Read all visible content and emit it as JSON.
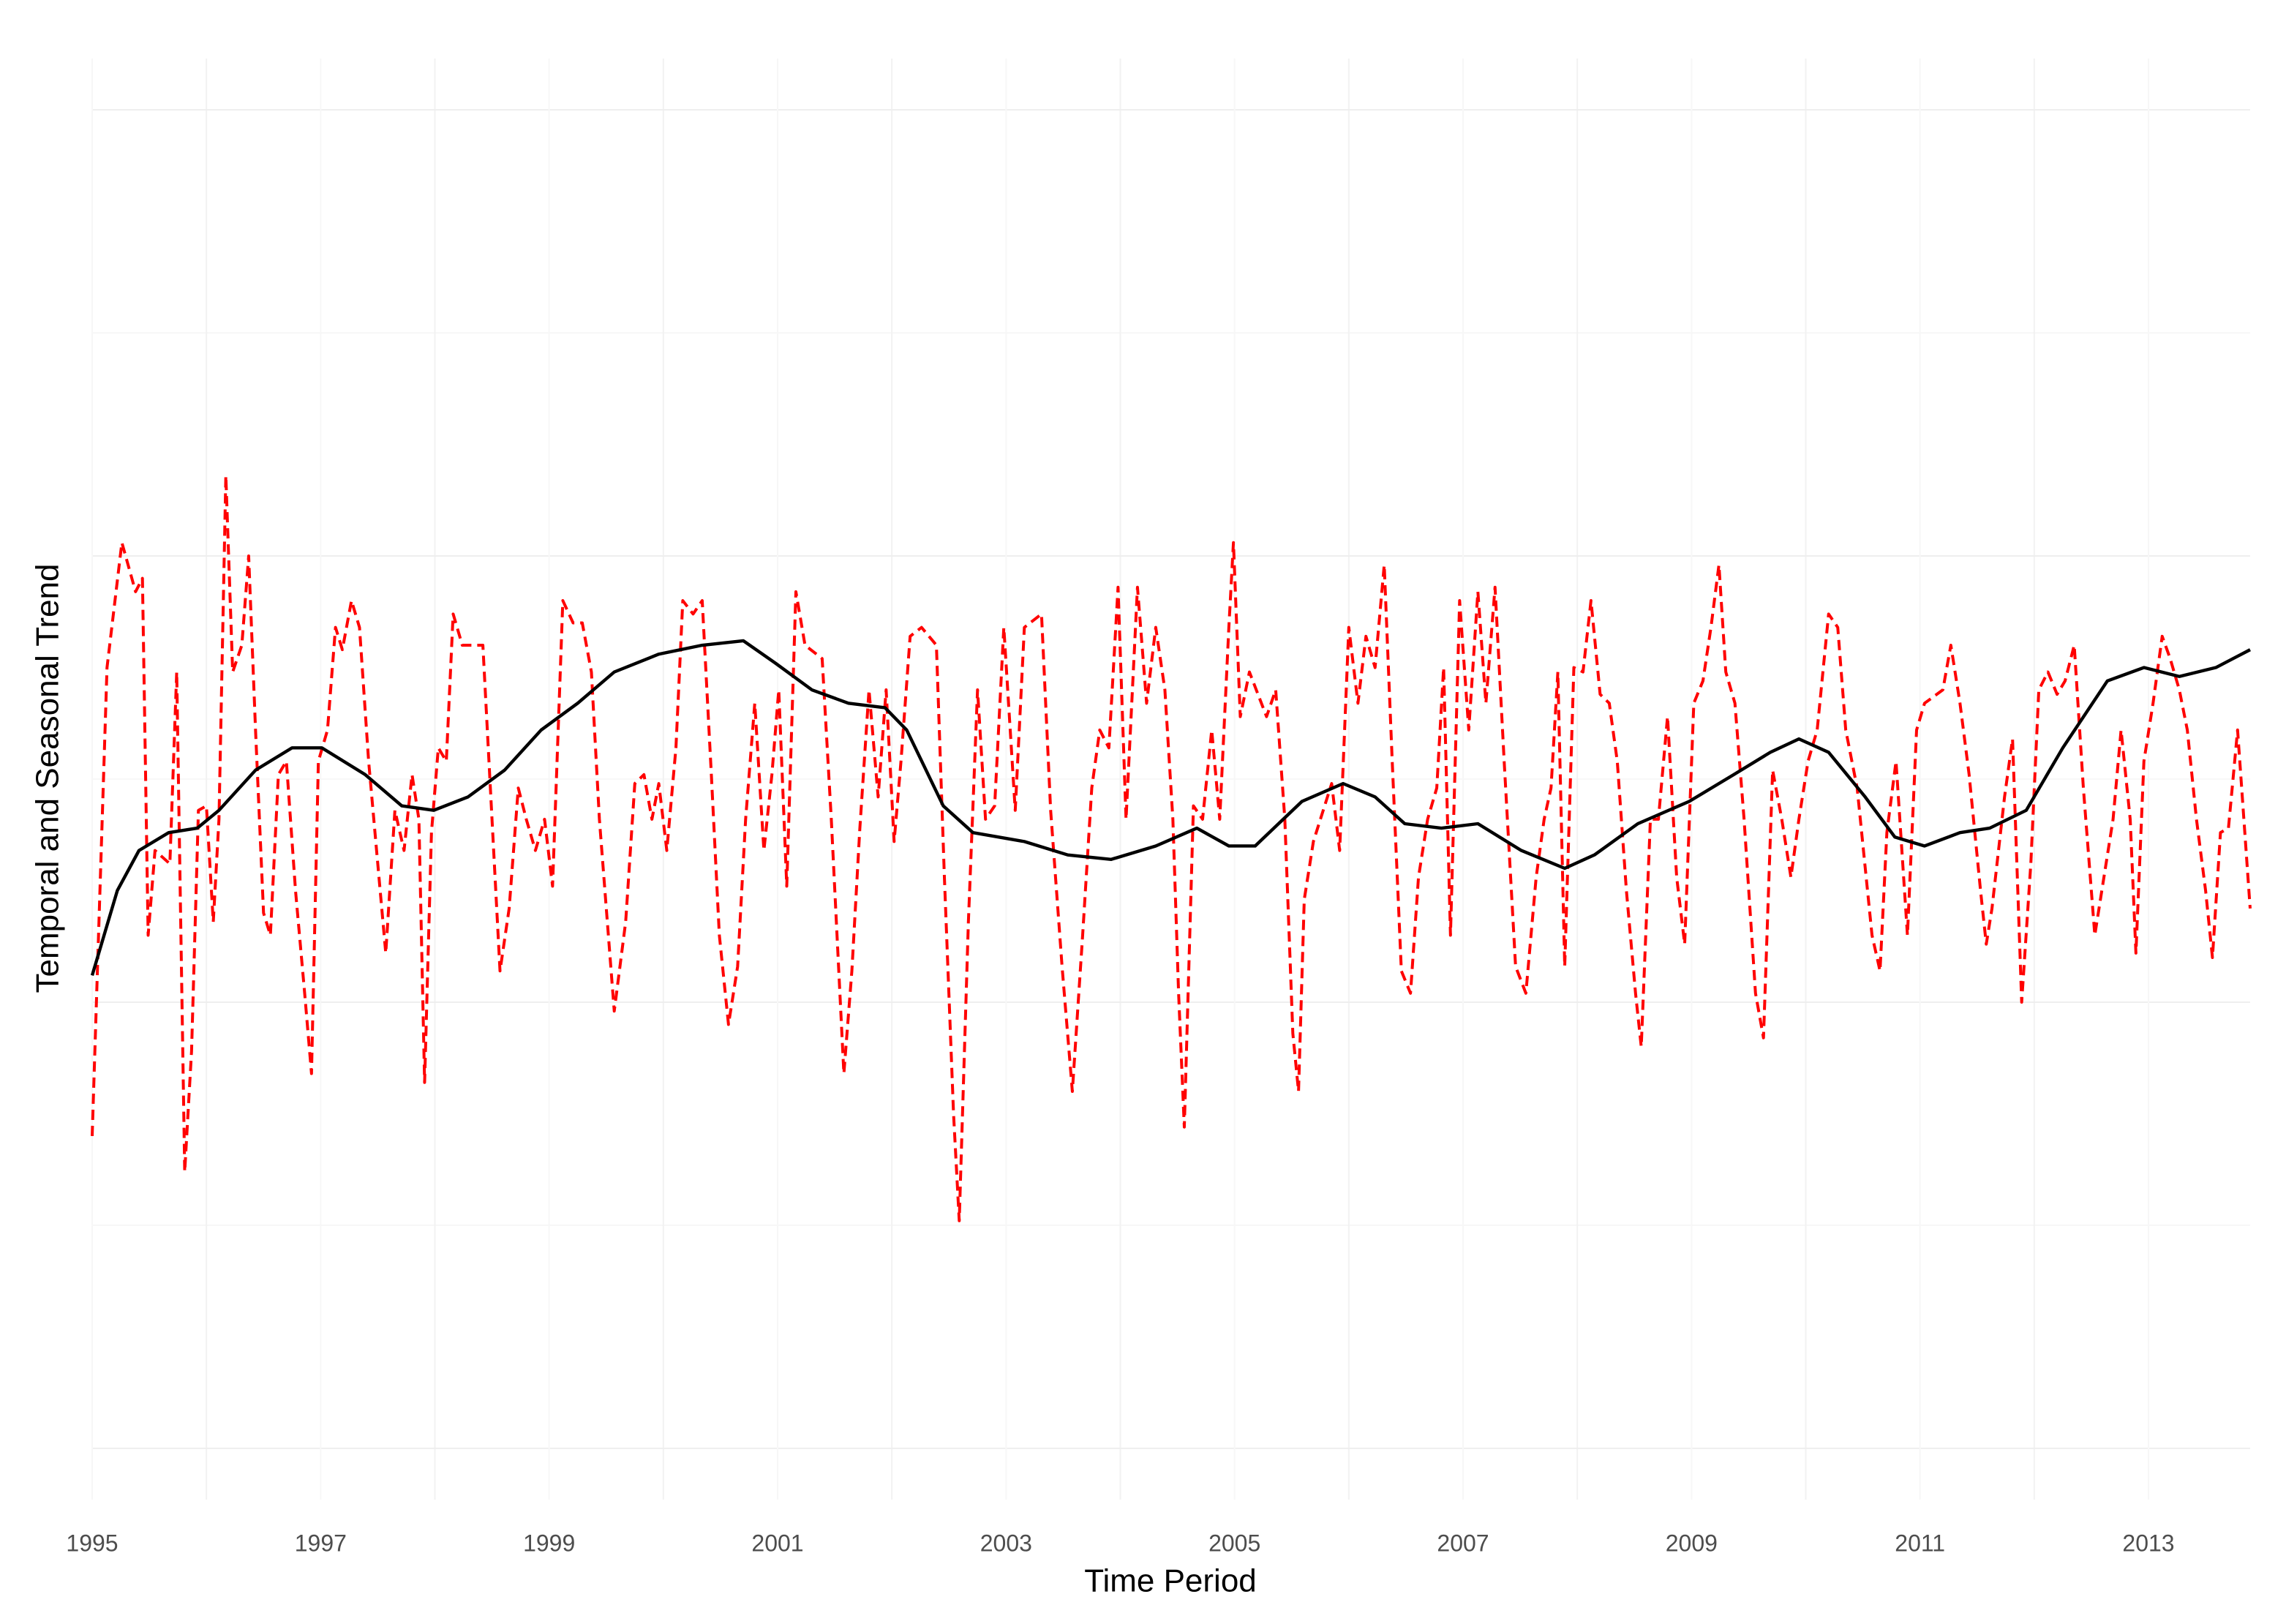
{
  "chart_data": {
    "type": "line",
    "xlabel": "Time Period",
    "ylabel": "Temporal and Seasonal Trend",
    "xlim": [
      1995,
      2013.89
    ],
    "xticks": [
      1995,
      1997,
      1999,
      2001,
      2003,
      2005,
      2007,
      2009,
      2011,
      2013
    ],
    "xminor": [
      1996,
      1998,
      2000,
      2002,
      2004,
      2006,
      2008,
      2010,
      2012
    ],
    "ylim": [
      -1.115,
      2.115
    ],
    "yticks": [
      -1,
      0,
      1,
      2
    ],
    "yminor": [
      -0.5,
      0.5,
      1.5
    ],
    "ytick_labels": false,
    "grid": true,
    "series": [
      {
        "color": "#ff0000",
        "dash": true,
        "x": [
          1995.0,
          1995.13,
          1995.26,
          1995.38,
          1995.44,
          1995.49,
          1995.55,
          1995.68,
          1995.74,
          1995.81,
          1995.87,
          1995.93,
          1996.0,
          1996.06,
          1996.11,
          1996.17,
          1996.23,
          1996.31,
          1996.37,
          1996.43,
          1996.5,
          1996.56,
          1996.63,
          1996.7,
          1996.78,
          1996.86,
          1996.92,
          1996.98,
          1997.06,
          1997.13,
          1997.19,
          1997.27,
          1997.34,
          1997.42,
          1997.5,
          1997.57,
          1997.65,
          1997.73,
          1997.8,
          1997.86,
          1997.91,
          1997.97,
          1998.03,
          1998.1,
          1998.16,
          1998.24,
          1998.42,
          1998.5,
          1998.57,
          1998.65,
          1998.73,
          1998.8,
          1998.88,
          1998.96,
          1999.03,
          1999.12,
          1999.21,
          1999.29,
          1999.37,
          1999.44,
          1999.57,
          1999.67,
          1999.75,
          1999.83,
          1999.9,
          1999.96,
          2000.03,
          2000.11,
          2000.17,
          2000.26,
          2000.34,
          2000.42,
          2000.49,
          2000.57,
          2000.65,
          2000.72,
          2000.8,
          2000.88,
          2000.95,
          2001.01,
          2001.08,
          2001.16,
          2001.24,
          2001.39,
          2001.47,
          2001.52,
          2001.58,
          2001.65,
          2001.72,
          2001.8,
          2001.88,
          2001.95,
          2002.02,
          2002.08,
          2002.16,
          2002.26,
          2002.39,
          2002.46,
          2002.54,
          2002.59,
          2002.67,
          2002.75,
          2002.82,
          2002.9,
          2002.98,
          2003.08,
          2003.16,
          2003.31,
          2003.39,
          2003.49,
          2003.58,
          2003.67,
          2003.75,
          2003.82,
          2003.9,
          2003.98,
          2004.05,
          2004.15,
          2004.23,
          2004.31,
          2004.39,
          2004.46,
          2004.51,
          2004.56,
          2004.64,
          2004.72,
          2004.8,
          2004.87,
          2004.95,
          2004.99,
          2005.05,
          2005.13,
          2005.28,
          2005.36,
          2005.44,
          2005.51,
          2005.56,
          2005.61,
          2005.69,
          2005.85,
          2005.92,
          2006.0,
          2006.08,
          2006.15,
          2006.23,
          2006.31,
          2006.38,
          2006.46,
          2006.54,
          2006.61,
          2006.69,
          2006.77,
          2006.83,
          2006.89,
          2006.97,
          2007.05,
          2007.13,
          2007.2,
          2007.28,
          2007.36,
          2007.46,
          2007.55,
          2007.64,
          2007.71,
          2007.77,
          2007.83,
          2007.89,
          2007.97,
          2008.05,
          2008.12,
          2008.2,
          2008.28,
          2008.35,
          2008.43,
          2008.51,
          2008.56,
          2008.64,
          2008.71,
          2008.79,
          2008.87,
          2008.94,
          2009.02,
          2009.1,
          2009.17,
          2009.24,
          2009.3,
          2009.38,
          2009.46,
          2009.56,
          2009.63,
          2009.71,
          2009.79,
          2009.87,
          2009.94,
          2010.02,
          2010.1,
          2010.2,
          2010.28,
          2010.35,
          2010.45,
          2010.58,
          2010.65,
          2010.71,
          2010.79,
          2010.89,
          2010.97,
          2011.04,
          2011.2,
          2011.27,
          2011.35,
          2011.43,
          2011.53,
          2011.58,
          2011.63,
          2011.74,
          2011.81,
          2011.89,
          2011.97,
          2012.04,
          2012.12,
          2012.2,
          2012.27,
          2012.35,
          2012.43,
          2012.53,
          2012.61,
          2012.69,
          2012.76,
          2012.84,
          2012.89,
          2012.96,
          2013.04,
          2013.12,
          2013.19,
          2013.27,
          2013.34,
          2013.42,
          2013.5,
          2013.56,
          2013.63,
          2013.7,
          2013.78,
          2013.89
        ],
        "values": [
          -0.3,
          0.75,
          1.03,
          0.92,
          0.95,
          0.15,
          0.34,
          0.31,
          0.74,
          -0.38,
          -0.11,
          0.43,
          0.44,
          0.18,
          0.41,
          1.18,
          0.74,
          0.8,
          1.0,
          0.61,
          0.2,
          0.15,
          0.51,
          0.54,
          0.25,
          0.02,
          -0.16,
          0.54,
          0.61,
          0.84,
          0.79,
          0.9,
          0.84,
          0.54,
          0.31,
          0.11,
          0.43,
          0.34,
          0.51,
          0.41,
          -0.18,
          0.38,
          0.57,
          0.54,
          0.87,
          0.8,
          0.8,
          0.41,
          0.07,
          0.21,
          0.48,
          0.41,
          0.34,
          0.41,
          0.26,
          0.9,
          0.85,
          0.85,
          0.74,
          0.41,
          -0.02,
          0.18,
          0.49,
          0.51,
          0.41,
          0.49,
          0.34,
          0.57,
          0.9,
          0.87,
          0.9,
          0.51,
          0.15,
          -0.05,
          0.08,
          0.41,
          0.67,
          0.34,
          0.51,
          0.7,
          0.26,
          0.92,
          0.8,
          0.77,
          0.41,
          0.15,
          -0.16,
          0.07,
          0.39,
          0.7,
          0.46,
          0.7,
          0.36,
          0.54,
          0.82,
          0.84,
          0.8,
          0.28,
          -0.25,
          -0.49,
          0.18,
          0.7,
          0.41,
          0.44,
          0.84,
          0.43,
          0.84,
          0.87,
          0.43,
          0.08,
          -0.2,
          0.15,
          0.48,
          0.61,
          0.57,
          0.93,
          0.41,
          0.93,
          0.67,
          0.84,
          0.7,
          0.41,
          0.02,
          -0.28,
          0.44,
          0.41,
          0.61,
          0.41,
          0.84,
          1.03,
          0.64,
          0.74,
          0.64,
          0.7,
          0.41,
          -0.07,
          -0.2,
          0.23,
          0.36,
          0.49,
          0.34,
          0.84,
          0.67,
          0.82,
          0.75,
          0.98,
          0.54,
          0.07,
          0.02,
          0.28,
          0.41,
          0.48,
          0.75,
          0.15,
          0.9,
          0.61,
          0.92,
          0.67,
          0.93,
          0.54,
          0.08,
          0.02,
          0.28,
          0.41,
          0.48,
          0.74,
          0.08,
          0.75,
          0.74,
          0.9,
          0.69,
          0.67,
          0.54,
          0.25,
          0.02,
          -0.1,
          0.41,
          0.41,
          0.64,
          0.28,
          0.13,
          0.67,
          0.72,
          0.84,
          0.98,
          0.74,
          0.67,
          0.41,
          0.02,
          -0.08,
          0.52,
          0.41,
          0.28,
          0.41,
          0.54,
          0.61,
          0.87,
          0.84,
          0.61,
          0.48,
          0.15,
          0.07,
          0.38,
          0.54,
          0.15,
          0.61,
          0.67,
          0.7,
          0.8,
          0.67,
          0.51,
          0.25,
          0.13,
          0.21,
          0.46,
          0.59,
          0.0,
          0.31,
          0.7,
          0.74,
          0.69,
          0.72,
          0.8,
          0.48,
          0.15,
          0.28,
          0.41,
          0.61,
          0.41,
          0.11,
          0.54,
          0.67,
          0.82,
          0.77,
          0.7,
          0.61,
          0.41,
          0.25,
          0.1,
          0.38,
          0.39,
          0.61,
          0.21
        ]
      },
      {
        "color": "#000000",
        "dash": false,
        "x": [
          1995.0,
          1995.22,
          1995.41,
          1995.67,
          1995.92,
          1996.11,
          1996.43,
          1996.75,
          1997.01,
          1997.39,
          1997.71,
          1997.99,
          1998.29,
          1998.61,
          1998.93,
          1999.25,
          1999.57,
          1999.96,
          2000.34,
          2000.7,
          2000.98,
          2001.3,
          2001.62,
          2001.94,
          2002.13,
          2002.45,
          2002.71,
          2003.16,
          2003.54,
          2003.92,
          2004.31,
          2004.67,
          2004.95,
          2005.18,
          2005.59,
          2005.95,
          2006.23,
          2006.49,
          2006.81,
          2007.13,
          2007.51,
          2007.89,
          2008.15,
          2008.53,
          2008.98,
          2009.37,
          2009.69,
          2009.94,
          2010.2,
          2010.52,
          2010.78,
          2011.04,
          2011.35,
          2011.61,
          2011.93,
          2012.25,
          2012.64,
          2012.96,
          2013.27,
          2013.59,
          2013.89
        ],
        "values": [
          0.06,
          0.25,
          0.34,
          0.38,
          0.39,
          0.43,
          0.52,
          0.57,
          0.57,
          0.51,
          0.44,
          0.43,
          0.46,
          0.52,
          0.61,
          0.67,
          0.74,
          0.78,
          0.8,
          0.81,
          0.76,
          0.7,
          0.67,
          0.66,
          0.61,
          0.44,
          0.38,
          0.36,
          0.33,
          0.32,
          0.35,
          0.39,
          0.35,
          0.35,
          0.45,
          0.49,
          0.46,
          0.4,
          0.39,
          0.4,
          0.34,
          0.3,
          0.33,
          0.4,
          0.45,
          0.51,
          0.56,
          0.59,
          0.56,
          0.46,
          0.37,
          0.35,
          0.38,
          0.39,
          0.43,
          0.57,
          0.72,
          0.75,
          0.73,
          0.75,
          0.79
        ]
      }
    ]
  }
}
